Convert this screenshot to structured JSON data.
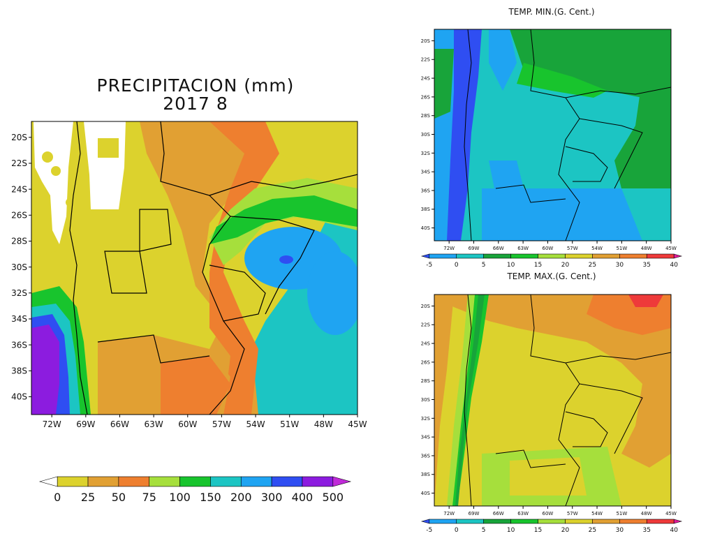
{
  "precip": {
    "title_line1": "PRECIPITACION (mm)",
    "title_line2": "2017   8",
    "lat_ticks": [
      "20S",
      "22S",
      "24S",
      "26S",
      "28S",
      "30S",
      "32S",
      "34S",
      "36S",
      "38S",
      "40S"
    ],
    "lon_ticks": [
      "72W",
      "69W",
      "66W",
      "63W",
      "60W",
      "57W",
      "54W",
      "51W",
      "48W",
      "45W"
    ],
    "colorbar": {
      "labels": [
        "0",
        "25",
        "50",
        "75",
        "100",
        "150",
        "200",
        "300",
        "400",
        "500"
      ],
      "colors": [
        "#ffffff",
        "#dcd22d",
        "#e1a033",
        "#ee7f2f",
        "#a6df3c",
        "#18c42d",
        "#1cc5c3",
        "#1fa4f2",
        "#2f4ef2",
        "#8c1cdf",
        "#c02bd8"
      ]
    }
  },
  "tmin": {
    "title": "TEMP. MIN.(G. Cent.)",
    "lat_ticks": [
      "20S",
      "22S",
      "24S",
      "26S",
      "28S",
      "30S",
      "32S",
      "34S",
      "36S",
      "38S",
      "40S"
    ],
    "lon_ticks": [
      "72W",
      "69W",
      "66W",
      "63W",
      "60W",
      "57W",
      "54W",
      "51W",
      "48W",
      "45W"
    ],
    "colorbar": {
      "labels": [
        "-5",
        "0",
        "5",
        "10",
        "15",
        "20",
        "25",
        "30",
        "35",
        "40"
      ],
      "colors": [
        "#2f4ef2",
        "#1fa4f2",
        "#1cc5c3",
        "#18a43a",
        "#18c42d",
        "#a6df3c",
        "#dcd22d",
        "#e1a033",
        "#ee7f2f",
        "#ee3a3a",
        "#e21b9a"
      ]
    }
  },
  "tmax": {
    "title": "TEMP. MAX.(G. Cent.)",
    "lat_ticks": [
      "20S",
      "22S",
      "24S",
      "26S",
      "28S",
      "30S",
      "32S",
      "34S",
      "36S",
      "38S",
      "40S"
    ],
    "lon_ticks": [
      "72W",
      "69W",
      "66W",
      "63W",
      "60W",
      "57W",
      "54W",
      "51W",
      "48W",
      "45W"
    ],
    "colorbar": {
      "labels": [
        "-5",
        "0",
        "5",
        "10",
        "15",
        "20",
        "25",
        "30",
        "35",
        "40"
      ],
      "colors": [
        "#2f4ef2",
        "#1fa4f2",
        "#1cc5c3",
        "#18a43a",
        "#18c42d",
        "#a6df3c",
        "#dcd22d",
        "#e1a033",
        "#ee7f2f",
        "#ee3a3a",
        "#e21b9a"
      ]
    }
  }
}
